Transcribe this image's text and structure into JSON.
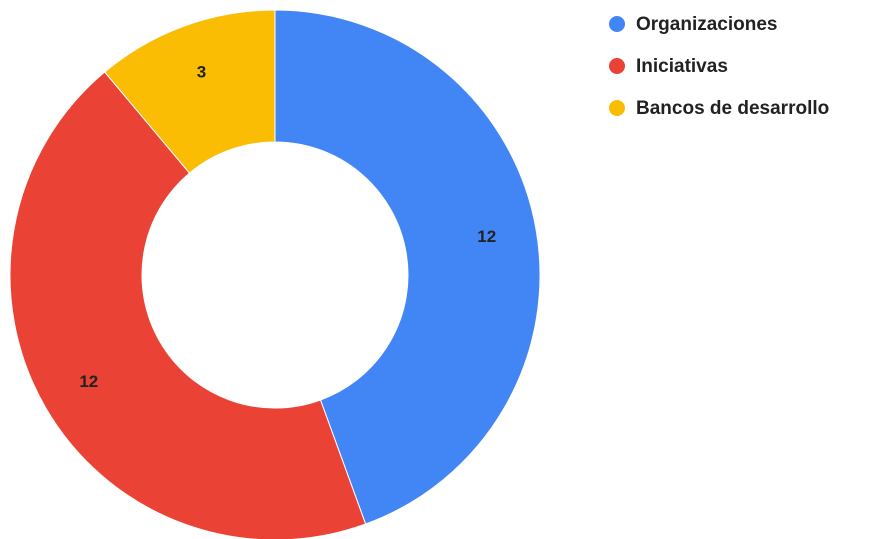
{
  "chart_data": {
    "type": "donut",
    "categories": [
      "Organizaciones",
      "Iniciativas",
      "Bancos de desarrollo"
    ],
    "values": [
      12,
      12,
      3
    ],
    "colors": [
      "#4285f4",
      "#ea4335",
      "#fbbc04"
    ],
    "legend": "right"
  }
}
